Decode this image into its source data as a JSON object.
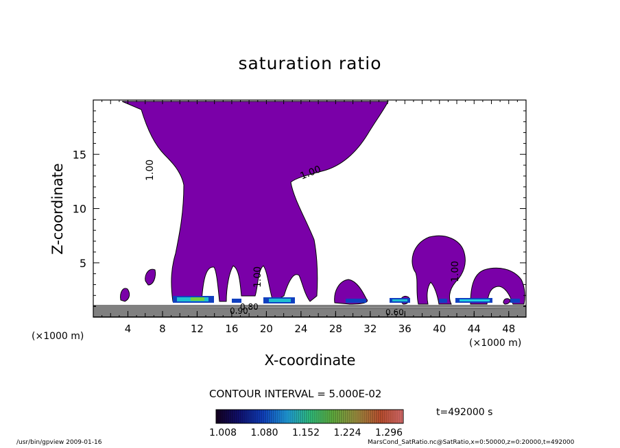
{
  "chart_data": {
    "type": "contour",
    "title": "saturation ratio",
    "xlabel": "X-coordinate",
    "ylabel": "Z-coordinate",
    "x_unit": "(×1000 m)",
    "x_ticks": [
      4,
      8,
      12,
      16,
      20,
      24,
      28,
      32,
      36,
      40,
      44,
      48
    ],
    "y_ticks": [
      5,
      10,
      15
    ],
    "xlim": [
      0,
      50
    ],
    "ylim": [
      0,
      20
    ],
    "contour_interval": "CONTOUR INTERVAL = 5.000E-02",
    "fill_color": "#7a00a8",
    "contour_labels": [
      "1.00",
      "1.00",
      "1.00",
      "1.00",
      "0.90",
      "0.60",
      "0.80"
    ],
    "colorbar": {
      "tick_labels": [
        "1.008",
        "1.080",
        "1.152",
        "1.224",
        "1.296"
      ],
      "colors": [
        "#1a0033",
        "#1010a0",
        "#1e7fe0",
        "#20c0c0",
        "#40c040",
        "#9ac040",
        "#c08040",
        "#c04020",
        "#e06060"
      ]
    },
    "time": "t=492000 s",
    "footer_left": "/usr/bin/gpview   2009-01-16",
    "footer_right": "MarsCond_SatRatio.nc@SatRatio,x=0:50000,z=0:20000,t=492000"
  }
}
